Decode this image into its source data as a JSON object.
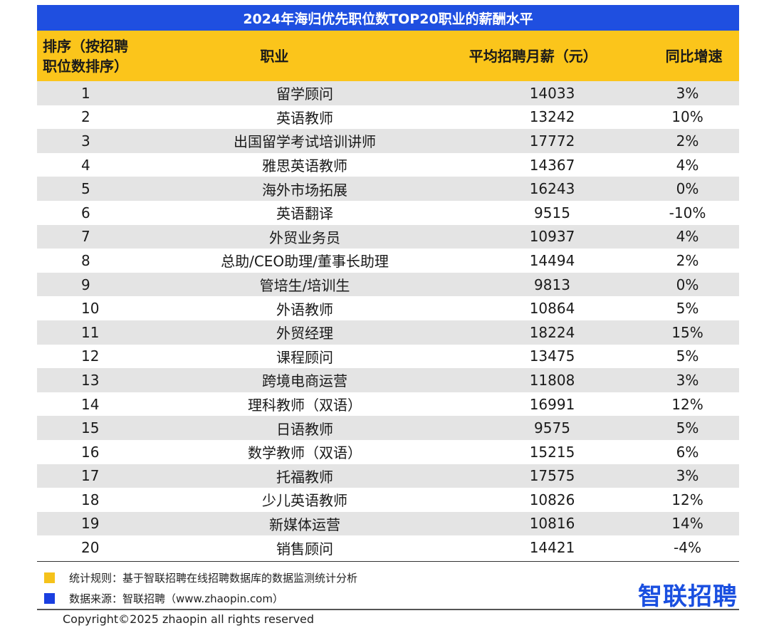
{
  "title": "2024年海归优先职位数TOP20职业的薪酬水平",
  "headers": {
    "rank": "排序（按招聘职位数排序）",
    "job": "职业",
    "salary": "平均招聘月薪（元）",
    "growth": "同比增速"
  },
  "rows": [
    {
      "rank": "1",
      "job": "留学顾问",
      "salary": "14033",
      "growth": "3%"
    },
    {
      "rank": "2",
      "job": "英语教师",
      "salary": "13242",
      "growth": "10%"
    },
    {
      "rank": "3",
      "job": "出国留学考试培训讲师",
      "salary": "17772",
      "growth": "2%"
    },
    {
      "rank": "4",
      "job": "雅思英语教师",
      "salary": "14367",
      "growth": "4%"
    },
    {
      "rank": "5",
      "job": "海外市场拓展",
      "salary": "16243",
      "growth": "0%"
    },
    {
      "rank": "6",
      "job": "英语翻译",
      "salary": "9515",
      "growth": "-10%"
    },
    {
      "rank": "7",
      "job": "外贸业务员",
      "salary": "10937",
      "growth": "4%"
    },
    {
      "rank": "8",
      "job": "总助/CEO助理/董事长助理",
      "salary": "14494",
      "growth": "2%"
    },
    {
      "rank": "9",
      "job": "管培生/培训生",
      "salary": "9813",
      "growth": "0%"
    },
    {
      "rank": "10",
      "job": "外语教师",
      "salary": "10864",
      "growth": "5%"
    },
    {
      "rank": "11",
      "job": "外贸经理",
      "salary": "18224",
      "growth": "15%"
    },
    {
      "rank": "12",
      "job": "课程顾问",
      "salary": "13475",
      "growth": "5%"
    },
    {
      "rank": "13",
      "job": "跨境电商运营",
      "salary": "11808",
      "growth": "3%"
    },
    {
      "rank": "14",
      "job": "理科教师（双语）",
      "salary": "16991",
      "growth": "12%"
    },
    {
      "rank": "15",
      "job": "日语教师",
      "salary": "9575",
      "growth": "5%"
    },
    {
      "rank": "16",
      "job": "数学教师（双语）",
      "salary": "15215",
      "growth": "6%"
    },
    {
      "rank": "17",
      "job": "托福教师",
      "salary": "17575",
      "growth": "3%"
    },
    {
      "rank": "18",
      "job": "少儿英语教师",
      "salary": "10826",
      "growth": "12%"
    },
    {
      "rank": "19",
      "job": "新媒体运营",
      "salary": "10816",
      "growth": "14%"
    },
    {
      "rank": "20",
      "job": "销售顾问",
      "salary": "14421",
      "growth": "-4%"
    }
  ],
  "notes": {
    "rule": "统计规则：基于智联招聘在线招聘数据库的数据监测统计分析",
    "source": "数据来源：智联招聘（www.zhaopin.com）"
  },
  "logo": "智联招聘",
  "watermark": "智联招聘",
  "copyright": "Copyright©2025 zhaopin all rights reserved",
  "colors": {
    "title_bg": "#1f4fe0",
    "header_bg": "#fbc51b",
    "stripe": "#e4e4e4",
    "rule_marker": "#f5c21b",
    "source_marker": "#1a3fe0",
    "logo": "#1a4fe0"
  }
}
